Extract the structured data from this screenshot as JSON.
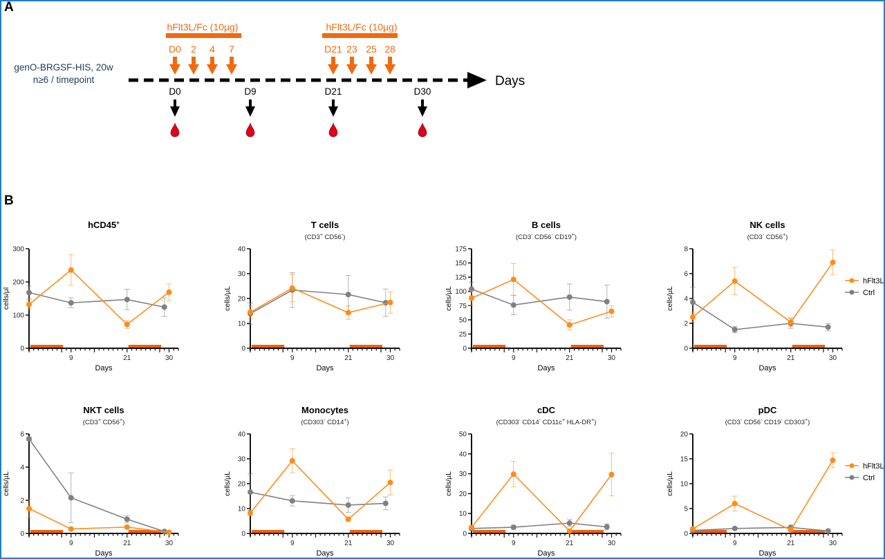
{
  "panels": {
    "a_label": "A",
    "b_label": "B"
  },
  "timeline": {
    "model_line1": "genO-BRGSF-HIS, 20w",
    "model_line2": "n≥6 / timepoint",
    "axis_label": "Days",
    "treatment_blocks": [
      {
        "label": "hFlt3L/Fc (10µg)",
        "days": [
          "D0",
          "2",
          "4",
          "7"
        ]
      },
      {
        "label": "hFlt3L/Fc (10µg)",
        "days": [
          "D21",
          "23",
          "25",
          "28"
        ]
      }
    ],
    "bleed_points": [
      "D0",
      "D9",
      "D21",
      "D30"
    ],
    "colors": {
      "treatment": "#f06a0f",
      "text_model": "#1f3b5a",
      "blood": "#e0001b"
    }
  },
  "legend": {
    "entries": [
      {
        "name": "hFlt3L",
        "color": "#ff8c1a"
      },
      {
        "name": "Ctrl",
        "color": "#808080"
      }
    ]
  },
  "chart_data": [
    {
      "type": "line",
      "title": "hCD45",
      "title_sup": "+",
      "subtitle": [],
      "xlabel": "Days",
      "ylabel": "cells/µl",
      "xticks": [
        9,
        21,
        30
      ],
      "xlim": [
        0,
        32
      ],
      "ylim": [
        0,
        300
      ],
      "yticks": [
        0,
        100,
        200,
        300
      ],
      "treatment_windows": [
        [
          0,
          7
        ],
        [
          21,
          28
        ]
      ],
      "series": [
        {
          "name": "hFlt3L",
          "x": [
            0,
            9,
            21,
            30
          ],
          "values": [
            132,
            236,
            72,
            169
          ],
          "err": [
            16,
            46,
            12,
            25
          ]
        },
        {
          "name": "Ctrl",
          "x": [
            0,
            9,
            21,
            29
          ],
          "values": [
            168,
            137,
            147,
            124
          ],
          "err": [
            20,
            15,
            31,
            28
          ]
        }
      ],
      "legend": false
    },
    {
      "type": "line",
      "title": "T cells",
      "title_sup": "",
      "subtitle": [
        {
          "t": "(CD3"
        },
        {
          "t": "+",
          "sup": true
        },
        {
          "t": " CD56"
        },
        {
          "t": "-",
          "sup": true
        },
        {
          "t": ")"
        }
      ],
      "xlabel": "Days",
      "ylabel": "cells/µL",
      "xticks": [
        9,
        21,
        30
      ],
      "xlim": [
        0,
        32
      ],
      "ylim": [
        0,
        40
      ],
      "yticks": [
        0,
        10,
        20,
        30,
        40
      ],
      "treatment_windows": [
        [
          0,
          7
        ],
        [
          21,
          28
        ]
      ],
      "series": [
        {
          "name": "hFlt3L",
          "x": [
            0,
            9,
            21,
            30
          ],
          "values": [
            14.5,
            24.2,
            14.3,
            18.4
          ],
          "err": [
            2.5,
            5.5,
            2.7,
            4.3
          ]
        },
        {
          "name": "Ctrl",
          "x": [
            0,
            9,
            21,
            29
          ],
          "values": [
            13.9,
            23.4,
            21.6,
            18.3
          ],
          "err": [
            4.3,
            7.0,
            7.7,
            5.5
          ]
        }
      ],
      "legend": false
    },
    {
      "type": "line",
      "title": "B cells",
      "title_sup": "",
      "subtitle": [
        {
          "t": "(CD3"
        },
        {
          "t": "-",
          "sup": true
        },
        {
          "t": " CD56"
        },
        {
          "t": "-",
          "sup": true
        },
        {
          "t": " CD19"
        },
        {
          "t": "+",
          "sup": true
        },
        {
          "t": ")"
        }
      ],
      "xlabel": "Days",
      "ylabel": "cells/µL",
      "xticks": [
        9,
        21,
        30
      ],
      "xlim": [
        0,
        32
      ],
      "ylim": [
        0,
        175
      ],
      "yticks": [
        0,
        25,
        50,
        75,
        100,
        125,
        150,
        175
      ],
      "treatment_windows": [
        [
          0,
          7
        ],
        [
          21,
          28
        ]
      ],
      "series": [
        {
          "name": "hFlt3L",
          "x": [
            0,
            9,
            21,
            30
          ],
          "values": [
            88,
            121,
            41,
            65
          ],
          "err": [
            13,
            28,
            9,
            10
          ]
        },
        {
          "name": "Ctrl",
          "x": [
            0,
            9,
            21,
            29
          ],
          "values": [
            104,
            76,
            90,
            82
          ],
          "err": [
            12,
            17,
            23,
            29
          ]
        }
      ],
      "legend": false
    },
    {
      "type": "line",
      "title": "NK cells",
      "title_sup": "",
      "subtitle": [
        {
          "t": "(CD3"
        },
        {
          "t": "-",
          "sup": true
        },
        {
          "t": " CD56"
        },
        {
          "t": "+",
          "sup": true
        },
        {
          "t": ")"
        }
      ],
      "xlabel": "Days",
      "ylabel": "cells/µL",
      "xticks": [
        9,
        21,
        30
      ],
      "xlim": [
        0,
        32
      ],
      "ylim": [
        0,
        8
      ],
      "yticks": [
        0,
        2,
        4,
        6,
        8
      ],
      "treatment_windows": [
        [
          0,
          7
        ],
        [
          21,
          28
        ]
      ],
      "series": [
        {
          "name": "hFlt3L",
          "x": [
            0,
            9,
            21,
            30
          ],
          "values": [
            2.5,
            5.4,
            2.1,
            6.9
          ],
          "err": [
            0.4,
            1.1,
            0.35,
            1.0
          ]
        },
        {
          "name": "Ctrl",
          "x": [
            0,
            9,
            21,
            29
          ],
          "values": [
            3.7,
            1.5,
            2.0,
            1.7
          ],
          "err": [
            1.2,
            0.25,
            0.4,
            0.3
          ]
        }
      ],
      "legend": true
    },
    {
      "type": "line",
      "title": "NKT cells",
      "title_sup": "",
      "subtitle": [
        {
          "t": "(CD3"
        },
        {
          "t": "+",
          "sup": true
        },
        {
          "t": " CD56"
        },
        {
          "t": "+",
          "sup": true
        },
        {
          "t": ")"
        }
      ],
      "xlabel": "Days",
      "ylabel": "cells/µL",
      "xticks": [
        9,
        21,
        30
      ],
      "xlim": [
        0,
        32
      ],
      "ylim": [
        0,
        6
      ],
      "yticks": [
        0,
        2,
        4,
        6
      ],
      "treatment_windows": [
        [
          0,
          7
        ],
        [
          21,
          28
        ]
      ],
      "series": [
        {
          "name": "hFlt3L",
          "x": [
            0,
            9,
            21,
            30
          ],
          "values": [
            1.5,
            0.27,
            0.38,
            0.07
          ],
          "err": [
            0.55,
            0.05,
            0.08,
            0.03
          ]
        },
        {
          "name": "Ctrl",
          "x": [
            0,
            9,
            21,
            29
          ],
          "values": [
            5.7,
            2.15,
            0.86,
            0.12
          ],
          "err": [
            0.1,
            1.5,
            0.22,
            0.05
          ]
        }
      ],
      "legend": false
    },
    {
      "type": "line",
      "title": "Monocytes",
      "title_sup": "",
      "subtitle": [
        {
          "t": "(CD303"
        },
        {
          "t": "-",
          "sup": true
        },
        {
          "t": " CD14"
        },
        {
          "t": "+",
          "sup": true
        },
        {
          "t": ")"
        }
      ],
      "xlabel": "Days",
      "ylabel": "cells/µL",
      "xticks": [
        9,
        21,
        30
      ],
      "xlim": [
        0,
        32
      ],
      "ylim": [
        0,
        40
      ],
      "yticks": [
        0,
        10,
        20,
        30,
        40
      ],
      "treatment_windows": [
        [
          0,
          7
        ],
        [
          21,
          28
        ]
      ],
      "series": [
        {
          "name": "hFlt3L",
          "x": [
            0,
            9,
            21,
            30
          ],
          "values": [
            8.2,
            29.2,
            5.7,
            20.5
          ],
          "err": [
            1.0,
            4.8,
            0.8,
            5.0
          ]
        },
        {
          "name": "Ctrl",
          "x": [
            0,
            9,
            21,
            29
          ],
          "values": [
            16.6,
            13.1,
            11.4,
            12.1
          ],
          "err": [
            7.4,
            2.1,
            2.9,
            2.6
          ]
        }
      ],
      "legend": false
    },
    {
      "type": "line",
      "title": "cDC",
      "title_sup": "",
      "subtitle": [
        {
          "t": "(CD303"
        },
        {
          "t": "-",
          "sup": true
        },
        {
          "t": " CD14"
        },
        {
          "t": "-",
          "sup": true
        },
        {
          "t": " CD11c"
        },
        {
          "t": "+",
          "sup": true
        },
        {
          "t": " HLA-DR"
        },
        {
          "t": "+",
          "sup": true
        },
        {
          "t": ")"
        }
      ],
      "xlabel": "Days",
      "ylabel": "cells/µL",
      "xticks": [
        9,
        21,
        30
      ],
      "xlim": [
        0,
        32
      ],
      "ylim": [
        0,
        50
      ],
      "yticks": [
        0,
        10,
        20,
        30,
        40,
        50
      ],
      "treatment_windows": [
        [
          0,
          7
        ],
        [
          21,
          28
        ]
      ],
      "series": [
        {
          "name": "hFlt3L",
          "x": [
            0,
            9,
            21,
            30
          ],
          "values": [
            3.0,
            29.8,
            1.2,
            29.6
          ],
          "err": [
            0.6,
            6.4,
            0.4,
            10.7
          ]
        },
        {
          "name": "Ctrl",
          "x": [
            0,
            9,
            21,
            29
          ],
          "values": [
            2.5,
            3.1,
            5.2,
            3.3
          ],
          "err": [
            0.8,
            1.0,
            1.8,
            1.5
          ]
        }
      ],
      "legend": false
    },
    {
      "type": "line",
      "title": "pDC",
      "title_sup": "",
      "subtitle": [
        {
          "t": "(CD3"
        },
        {
          "t": "-",
          "sup": true
        },
        {
          "t": " CD56"
        },
        {
          "t": "-",
          "sup": true
        },
        {
          "t": " CD19"
        },
        {
          "t": "-",
          "sup": true
        },
        {
          "t": " CD303"
        },
        {
          "t": "+",
          "sup": true
        },
        {
          "t": ")"
        }
      ],
      "xlabel": "Days",
      "ylabel": "cells/µL",
      "xticks": [
        9,
        21,
        30
      ],
      "xlim": [
        0,
        32
      ],
      "ylim": [
        0,
        20
      ],
      "yticks": [
        0,
        5,
        10,
        15,
        20
      ],
      "treatment_windows": [
        [
          0,
          7
        ],
        [
          21,
          28
        ]
      ],
      "series": [
        {
          "name": "hFlt3L",
          "x": [
            0,
            9,
            21,
            30
          ],
          "values": [
            0.9,
            6.0,
            0.7,
            14.7
          ],
          "err": [
            0.3,
            1.5,
            0.3,
            1.5
          ]
        },
        {
          "name": "Ctrl",
          "x": [
            0,
            9,
            21,
            29
          ],
          "values": [
            0.6,
            1.0,
            1.2,
            0.5
          ],
          "err": [
            0.2,
            0.2,
            0.5,
            0.1
          ]
        }
      ],
      "legend": true
    }
  ]
}
